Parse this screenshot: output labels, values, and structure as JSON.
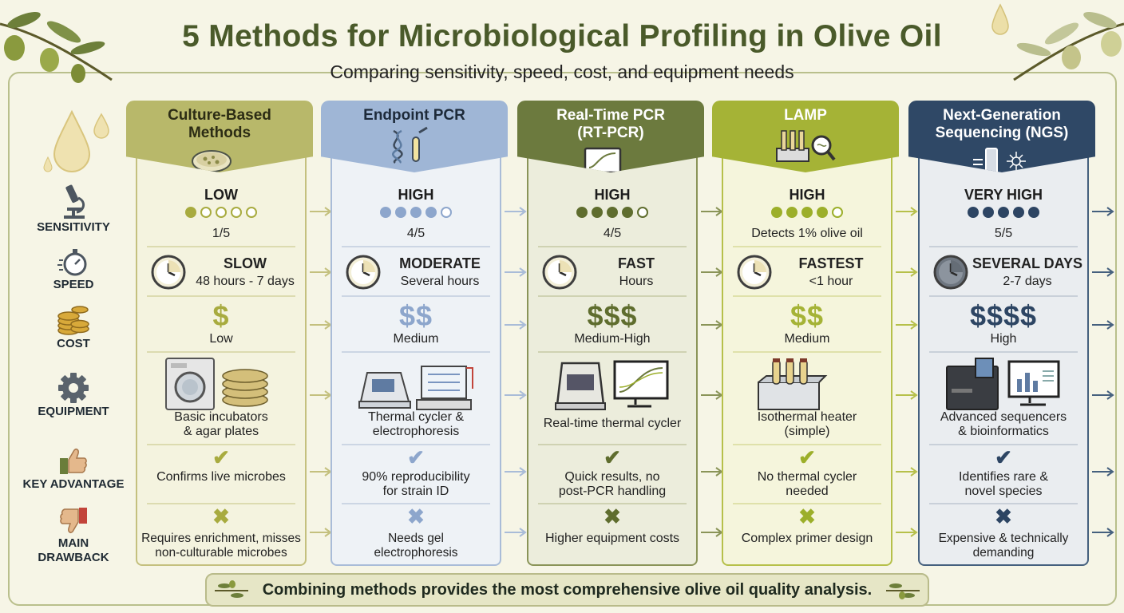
{
  "title": "5 Methods for Microbiological Profiling in Olive Oil",
  "subtitle": "Comparing sensitivity, speed, cost, and equipment needs",
  "row_labels": {
    "sensitivity": "SENSITIVITY",
    "speed": "SPEED",
    "cost": "COST",
    "equipment": "EQUIPMENT",
    "advantage": "KEY ADVANTAGE",
    "drawback_1": "MAIN",
    "drawback_2": "DRAWBACK"
  },
  "methods": [
    {
      "name_1": "Culture-Based",
      "name_2": "Methods",
      "sensitivity": "LOW",
      "rating": 1,
      "rating_text": "1/5",
      "speed": "SLOW",
      "speed_detail": "48 hours - 7 days",
      "cost_symbol": "$",
      "cost": "Low",
      "equipment_1": "Basic incubators",
      "equipment_2": "& agar plates",
      "advantage_1": "Confirms live microbes",
      "advantage_2": "",
      "drawback_1": "Requires enrichment, misses",
      "drawback_2": "non-culturable microbes",
      "colors": {
        "header": "#b8b86a",
        "header_text": "#2c2c14",
        "border": "#c4c07e",
        "bg": "#f4f3df",
        "accent": "#a8ab3f",
        "sep": "#dcdbb0"
      }
    },
    {
      "name_1": "Endpoint PCR",
      "name_2": "",
      "sensitivity": "HIGH",
      "rating": 4,
      "rating_text": "4/5",
      "speed": "MODERATE",
      "speed_detail": "Several hours",
      "cost_symbol": "$$",
      "cost": "Medium",
      "equipment_1": "Thermal cycler &",
      "equipment_2": "electrophoresis",
      "advantage_1": "90% reproducibility",
      "advantage_2": "for strain ID",
      "drawback_1": "Needs gel",
      "drawback_2": "electrophoresis",
      "colors": {
        "header": "#9fb6d6",
        "header_text": "#1d2a3a",
        "border": "#a9bcd8",
        "bg": "#eef2f6",
        "accent": "#8da6cc",
        "sep": "#ccd6e4"
      }
    },
    {
      "name_1": "Real-Time PCR",
      "name_2": "(RT-PCR)",
      "sensitivity": "HIGH",
      "rating": 4,
      "rating_text": "4/5",
      "speed": "FAST",
      "speed_detail": "Hours",
      "cost_symbol": "$$$",
      "cost": "Medium-High",
      "equipment_1": "Real-time thermal cycler",
      "equipment_2": "",
      "advantage_1": "Quick results, no",
      "advantage_2": "post-PCR handling",
      "drawback_1": "Higher equipment costs",
      "drawback_2": "",
      "colors": {
        "header": "#6c7a3e",
        "header_text": "#ffffff",
        "border": "#8a9458",
        "bg": "#eceddc",
        "accent": "#5f6d2e",
        "sep": "#cfd2b2"
      }
    },
    {
      "name_1": "LAMP",
      "name_2": "",
      "sensitivity": "HIGH",
      "rating": 4,
      "rating_text": "Detects 1% olive oil",
      "speed": "FASTEST",
      "speed_detail": "<1 hour",
      "cost_symbol": "$$",
      "cost": "Medium",
      "equipment_1": "Isothermal heater",
      "equipment_2": "(simple)",
      "advantage_1": "No thermal cycler",
      "advantage_2": "needed",
      "drawback_1": "Complex primer design",
      "drawback_2": "",
      "colors": {
        "header": "#a5b336",
        "header_text": "#ffffff",
        "border": "#b6c04a",
        "bg": "#f5f5dc",
        "accent": "#9caf2a",
        "sep": "#dfe1aa"
      }
    },
    {
      "name_1": "Next-Generation",
      "name_2": "Sequencing (NGS)",
      "sensitivity": "VERY HIGH",
      "rating": 5,
      "rating_text": "5/5",
      "speed": "SEVERAL DAYS",
      "speed_detail": "2-7 days",
      "cost_symbol": "$$$$",
      "cost": "High",
      "equipment_1": "Advanced sequencers",
      "equipment_2": "& bioinformatics",
      "advantage_1": "Identifies rare &",
      "advantage_2": "novel species",
      "drawback_1": "Expensive & technically",
      "drawback_2": "demanding",
      "colors": {
        "header": "#2f4866",
        "header_text": "#ffffff",
        "border": "#45607e",
        "bg": "#eaedf0",
        "accent": "#2d4563",
        "sep": "#c9d0d9"
      }
    }
  ],
  "footer": "Combining methods provides the most comprehensive olive oil quality analysis.",
  "icons": [
    "microscope-icon",
    "stopwatch-icon",
    "coins-icon",
    "gear-icon",
    "thumbs-up-icon",
    "thumbs-down-icon",
    "clock-icon",
    "check-icon",
    "cross-icon",
    "olive-branch-icon",
    "oil-drop-icon"
  ]
}
